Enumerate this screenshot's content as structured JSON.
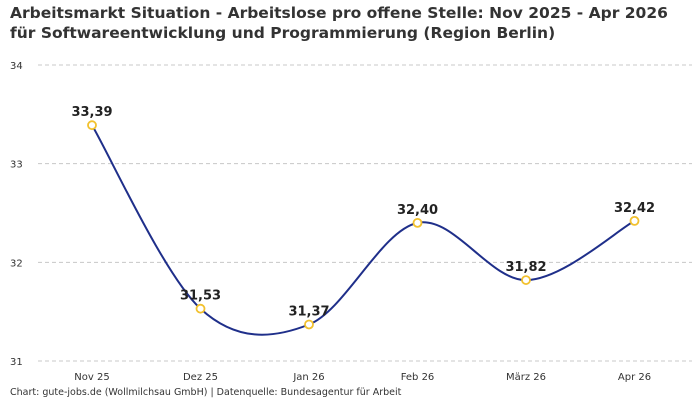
{
  "chart_data": {
    "type": "line",
    "title": "Arbeitsmarkt Situation - Arbeitslose pro offene Stelle: Nov 2025 - Apr 2026 für Softwareentwicklung und Programmierung (Region Berlin)",
    "xlabel": "",
    "ylabel": "",
    "categories": [
      "Nov 25",
      "Dez 25",
      "Jan 26",
      "Feb 26",
      "März 26",
      "Apr 26"
    ],
    "values": [
      33.39,
      31.53,
      31.37,
      32.4,
      31.82,
      32.42
    ],
    "data_labels": [
      "33,39",
      "31,53",
      "31,37",
      "32,40",
      "31,82",
      "32,42"
    ],
    "ylim": [
      31,
      34
    ],
    "yticks": [
      31,
      32,
      33,
      34
    ],
    "ytick_labels": [
      "31",
      "32",
      "33",
      "34"
    ],
    "grid": "horizontal dashed",
    "line_color": "#1f2f8a",
    "marker_color": "#f2c12e"
  },
  "footer": {
    "source": "Chart: gute-jobs.de (Wollmilchsau GmbH) | Datenquelle: Bundesagentur für Arbeit"
  }
}
